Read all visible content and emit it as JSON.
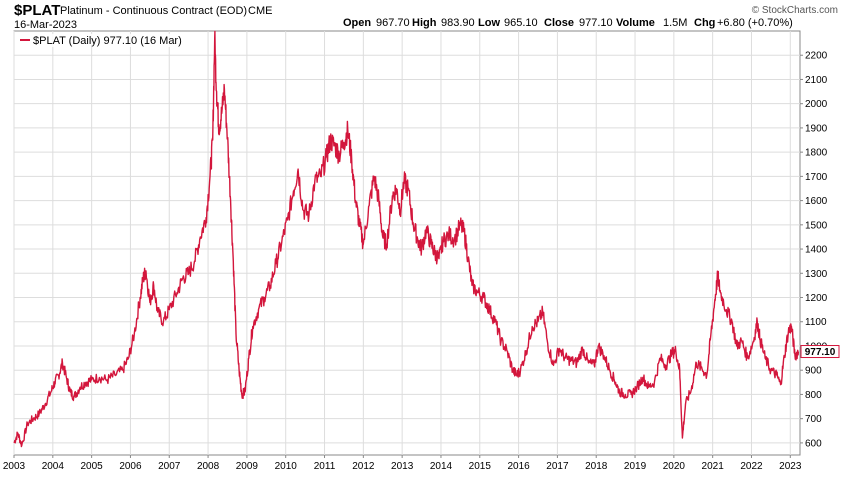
{
  "header": {
    "symbol": "$PLAT",
    "description": "Platinum - Continuous Contract (EOD)",
    "exchange": "CME",
    "date": "16-Mar-2023",
    "watermark": "© StockCharts.com",
    "open_label": "Open",
    "open": "967.70",
    "high_label": "High",
    "high": "983.90",
    "low_label": "Low",
    "low": "965.10",
    "close_label": "Close",
    "close": "977.10",
    "volume_label": "Volume",
    "volume": "1.5M",
    "chg_label": "Chg",
    "chg": "+6.80 (+0.70%)"
  },
  "legend": {
    "text": "$PLAT (Daily) 977.10 (16 Mar)"
  },
  "last_value_label": "977.10",
  "colors": {
    "line": "#d3163c",
    "grid": "#dddddd",
    "border": "#888888",
    "last_box_border": "#d3163c"
  },
  "chart_data": {
    "type": "line",
    "title": "$PLAT Platinum - Continuous Contract (EOD) CME",
    "xlabel": "",
    "ylabel": "",
    "x_range": [
      2003.0,
      2023.25
    ],
    "ylim": [
      550,
      2300
    ],
    "x_tick_labels": [
      "2003",
      "2004",
      "2005",
      "2006",
      "2007",
      "2008",
      "2009",
      "2010",
      "2011",
      "2012",
      "2013",
      "2014",
      "2015",
      "2016",
      "2017",
      "2018",
      "2019",
      "2020",
      "2021",
      "2022",
      "2023"
    ],
    "y_tick_labels": [
      "600",
      "700",
      "800",
      "900",
      "1000",
      "1100",
      "1200",
      "1300",
      "1400",
      "1500",
      "1600",
      "1700",
      "1800",
      "1900",
      "2000",
      "2100",
      "2200"
    ],
    "grid": true,
    "legend_position": "top-left",
    "series": [
      {
        "name": "$PLAT (Daily) 977.10 (16 Mar)",
        "points": [
          [
            2003.0,
            600
          ],
          [
            2003.1,
            640
          ],
          [
            2003.2,
            590
          ],
          [
            2003.35,
            680
          ],
          [
            2003.5,
            700
          ],
          [
            2003.65,
            720
          ],
          [
            2003.8,
            760
          ],
          [
            2003.95,
            810
          ],
          [
            2004.05,
            850
          ],
          [
            2004.15,
            880
          ],
          [
            2004.25,
            930
          ],
          [
            2004.35,
            870
          ],
          [
            2004.45,
            810
          ],
          [
            2004.55,
            790
          ],
          [
            2004.7,
            830
          ],
          [
            2004.85,
            850
          ],
          [
            2005.0,
            860
          ],
          [
            2005.2,
            870
          ],
          [
            2005.4,
            860
          ],
          [
            2005.6,
            880
          ],
          [
            2005.8,
            900
          ],
          [
            2005.95,
            950
          ],
          [
            2006.1,
            1050
          ],
          [
            2006.25,
            1200
          ],
          [
            2006.33,
            1280
          ],
          [
            2006.4,
            1310
          ],
          [
            2006.5,
            1180
          ],
          [
            2006.6,
            1250
          ],
          [
            2006.7,
            1140
          ],
          [
            2006.85,
            1100
          ],
          [
            2007.0,
            1150
          ],
          [
            2007.2,
            1220
          ],
          [
            2007.35,
            1280
          ],
          [
            2007.5,
            1300
          ],
          [
            2007.65,
            1350
          ],
          [
            2007.8,
            1450
          ],
          [
            2007.95,
            1530
          ],
          [
            2008.05,
            1700
          ],
          [
            2008.12,
            1850
          ],
          [
            2008.17,
            2270
          ],
          [
            2008.22,
            2050
          ],
          [
            2008.28,
            1900
          ],
          [
            2008.35,
            1960
          ],
          [
            2008.42,
            2060
          ],
          [
            2008.5,
            1860
          ],
          [
            2008.58,
            1600
          ],
          [
            2008.65,
            1350
          ],
          [
            2008.72,
            1050
          ],
          [
            2008.8,
            900
          ],
          [
            2008.87,
            800
          ],
          [
            2008.95,
            810
          ],
          [
            2009.05,
            950
          ],
          [
            2009.15,
            1080
          ],
          [
            2009.3,
            1150
          ],
          [
            2009.45,
            1200
          ],
          [
            2009.6,
            1250
          ],
          [
            2009.75,
            1340
          ],
          [
            2009.9,
            1430
          ],
          [
            2010.05,
            1520
          ],
          [
            2010.2,
            1640
          ],
          [
            2010.32,
            1730
          ],
          [
            2010.45,
            1560
          ],
          [
            2010.6,
            1540
          ],
          [
            2010.75,
            1680
          ],
          [
            2010.9,
            1700
          ],
          [
            2011.05,
            1780
          ],
          [
            2011.15,
            1850
          ],
          [
            2011.28,
            1820
          ],
          [
            2011.38,
            1790
          ],
          [
            2011.5,
            1840
          ],
          [
            2011.6,
            1890
          ],
          [
            2011.7,
            1770
          ],
          [
            2011.8,
            1600
          ],
          [
            2011.9,
            1500
          ],
          [
            2012.0,
            1420
          ],
          [
            2012.15,
            1580
          ],
          [
            2012.28,
            1700
          ],
          [
            2012.4,
            1600
          ],
          [
            2012.5,
            1450
          ],
          [
            2012.6,
            1420
          ],
          [
            2012.75,
            1620
          ],
          [
            2012.85,
            1650
          ],
          [
            2012.95,
            1560
          ],
          [
            2013.05,
            1680
          ],
          [
            2013.15,
            1650
          ],
          [
            2013.28,
            1510
          ],
          [
            2013.4,
            1440
          ],
          [
            2013.5,
            1400
          ],
          [
            2013.62,
            1480
          ],
          [
            2013.75,
            1420
          ],
          [
            2013.85,
            1380
          ],
          [
            2013.95,
            1360
          ],
          [
            2014.05,
            1430
          ],
          [
            2014.2,
            1460
          ],
          [
            2014.35,
            1440
          ],
          [
            2014.5,
            1500
          ],
          [
            2014.6,
            1470
          ],
          [
            2014.7,
            1360
          ],
          [
            2014.8,
            1250
          ],
          [
            2014.95,
            1220
          ],
          [
            2015.1,
            1200
          ],
          [
            2015.25,
            1150
          ],
          [
            2015.4,
            1100
          ],
          [
            2015.55,
            1020
          ],
          [
            2015.7,
            980
          ],
          [
            2015.85,
            900
          ],
          [
            2015.95,
            880
          ],
          [
            2016.05,
            900
          ],
          [
            2016.2,
            980
          ],
          [
            2016.35,
            1080
          ],
          [
            2016.5,
            1100
          ],
          [
            2016.62,
            1140
          ],
          [
            2016.75,
            1010
          ],
          [
            2016.9,
            920
          ],
          [
            2017.05,
            990
          ],
          [
            2017.2,
            950
          ],
          [
            2017.35,
            940
          ],
          [
            2017.5,
            930
          ],
          [
            2017.65,
            990
          ],
          [
            2017.8,
            930
          ],
          [
            2017.95,
            920
          ],
          [
            2018.05,
            1000
          ],
          [
            2018.2,
            960
          ],
          [
            2018.35,
            900
          ],
          [
            2018.5,
            850
          ],
          [
            2018.6,
            810
          ],
          [
            2018.75,
            800
          ],
          [
            2018.9,
            800
          ],
          [
            2019.05,
            830
          ],
          [
            2019.2,
            870
          ],
          [
            2019.35,
            830
          ],
          [
            2019.5,
            850
          ],
          [
            2019.65,
            950
          ],
          [
            2019.8,
            920
          ],
          [
            2019.95,
            970
          ],
          [
            2020.05,
            980
          ],
          [
            2020.15,
            900
          ],
          [
            2020.22,
            620
          ],
          [
            2020.3,
            760
          ],
          [
            2020.45,
            820
          ],
          [
            2020.58,
            930
          ],
          [
            2020.7,
            910
          ],
          [
            2020.85,
            880
          ],
          [
            2020.95,
            1040
          ],
          [
            2021.05,
            1180
          ],
          [
            2021.13,
            1290
          ],
          [
            2021.2,
            1220
          ],
          [
            2021.35,
            1150
          ],
          [
            2021.5,
            1100
          ],
          [
            2021.62,
            1000
          ],
          [
            2021.75,
            1020
          ],
          [
            2021.9,
            950
          ],
          [
            2022.05,
            1020
          ],
          [
            2022.15,
            1100
          ],
          [
            2022.22,
            1030
          ],
          [
            2022.35,
            950
          ],
          [
            2022.5,
            900
          ],
          [
            2022.65,
            880
          ],
          [
            2022.75,
            840
          ],
          [
            2022.85,
            960
          ],
          [
            2022.95,
            1060
          ],
          [
            2023.03,
            1080
          ],
          [
            2023.12,
            960
          ],
          [
            2023.21,
            977.1
          ]
        ]
      }
    ]
  }
}
